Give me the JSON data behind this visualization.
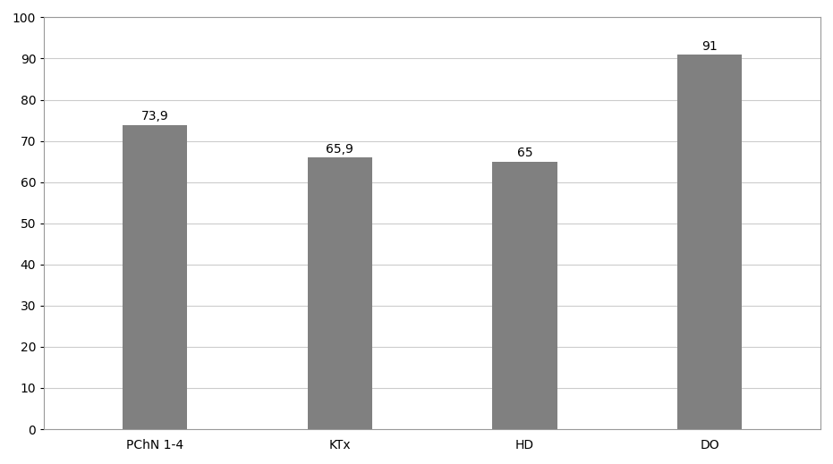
{
  "categories": [
    "PChN 1-4",
    "KTx",
    "HD",
    "DO"
  ],
  "values": [
    73.9,
    65.9,
    65,
    91
  ],
  "labels": [
    "73,9",
    "65,9",
    "65",
    "91"
  ],
  "bar_color": "#808080",
  "ylim": [
    0,
    100
  ],
  "yticks": [
    0,
    10,
    20,
    30,
    40,
    50,
    60,
    70,
    80,
    90,
    100
  ],
  "bar_width": 0.35,
  "label_fontsize": 10,
  "tick_fontsize": 10,
  "background_color": "#ffffff",
  "grid_color": "#cccccc",
  "spine_color": "#999999"
}
